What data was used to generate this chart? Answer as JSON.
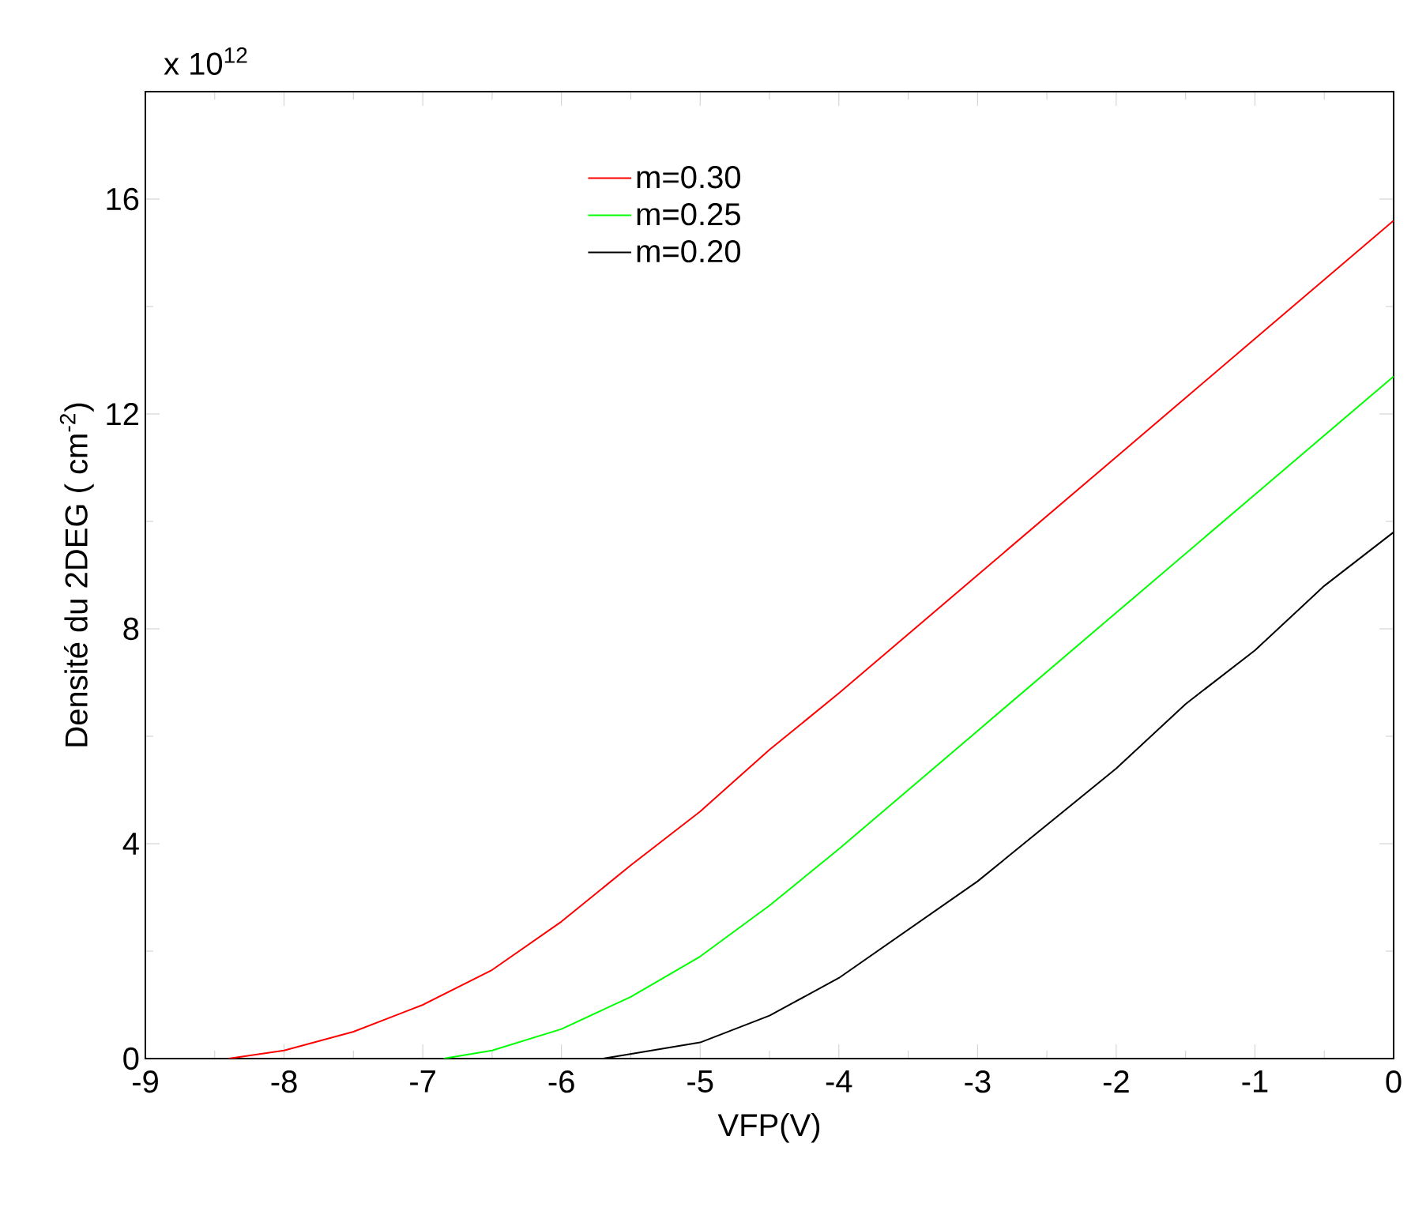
{
  "chart_data": {
    "type": "line",
    "xlabel": "VFP(V)",
    "ylabel": "Densité du 2DEG ( cm$^{-2}$)",
    "annotations": [
      "x 10$^{12}$"
    ],
    "xlim": [
      -9,
      0
    ],
    "ylim": [
      0,
      18
    ],
    "xticks": [
      -9,
      -8,
      -7,
      -6,
      -5,
      -4,
      -3,
      -2,
      -1,
      0
    ],
    "yticks": [
      0,
      4,
      8,
      12,
      16
    ],
    "legend": "top",
    "grid": false,
    "series": [
      {
        "name": "m=0.30",
        "color": "#ff0000",
        "x": [
          -8.4,
          -8,
          -7.5,
          -7,
          -6.5,
          -6,
          -5.5,
          -5,
          -4.5,
          -4,
          -3,
          -2,
          -1,
          0
        ],
        "values": [
          0,
          0.15,
          0.5,
          1.0,
          1.65,
          2.55,
          3.6,
          4.6,
          5.75,
          6.8,
          9.0,
          11.2,
          13.4,
          15.6
        ]
      },
      {
        "name": "m=0.25",
        "color": "#00ff00",
        "x": [
          -6.85,
          -6.5,
          -6,
          -5.5,
          -5,
          -4.5,
          -4,
          -3,
          -2,
          -1,
          0
        ],
        "values": [
          0,
          0.15,
          0.55,
          1.15,
          1.9,
          2.85,
          3.9,
          6.1,
          8.3,
          10.5,
          12.7
        ]
      },
      {
        "name": "m=0.20",
        "color": "#000000",
        "x": [
          -5.7,
          -5,
          -4.5,
          -4,
          -3,
          -2,
          -1.5,
          -1,
          -0.5,
          0
        ],
        "values": [
          0,
          0.3,
          0.8,
          1.5,
          3.3,
          5.4,
          6.6,
          7.6,
          8.8,
          9.8
        ]
      }
    ]
  }
}
